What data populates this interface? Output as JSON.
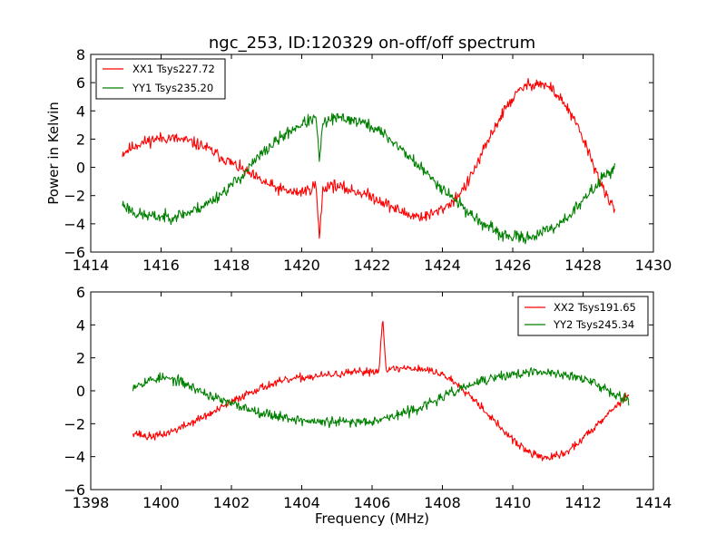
{
  "chart_data": [
    {
      "type": "line",
      "title": "ngc_253, ID:120329 on-off/off spectrum",
      "xlabel": "",
      "ylabel": "Power in Kelvin",
      "xlim": [
        1414,
        1430
      ],
      "ylim": [
        -6,
        8
      ],
      "xticks": [
        1414,
        1416,
        1418,
        1420,
        1422,
        1424,
        1426,
        1428,
        1430
      ],
      "yticks": [
        -6,
        -4,
        -2,
        0,
        2,
        4,
        6,
        8
      ],
      "legend_position": "top-left",
      "grid": false,
      "series": [
        {
          "name": "XX1 Tsys227.72",
          "color": "#ff0000",
          "noise": 0.35,
          "seed": 11,
          "x": [
            1414.9,
            1415.3,
            1415.8,
            1416.2,
            1416.7,
            1417.2,
            1417.6,
            1418.0,
            1418.4,
            1418.8,
            1419.3,
            1419.8,
            1420.2,
            1420.4,
            1420.5,
            1420.6,
            1420.8,
            1421.2,
            1421.7,
            1422.2,
            1422.7,
            1423.1,
            1423.5,
            1423.9,
            1424.3,
            1424.7,
            1425.1,
            1425.5,
            1425.9,
            1426.3,
            1426.7,
            1427.1,
            1427.5,
            1427.9,
            1428.3,
            1428.6,
            1428.9
          ],
          "y": [
            1.0,
            1.6,
            2.0,
            2.1,
            1.9,
            1.5,
            0.9,
            0.3,
            -0.3,
            -0.9,
            -1.5,
            -1.8,
            -1.6,
            -1.2,
            -5.0,
            -1.6,
            -1.2,
            -1.5,
            -1.8,
            -2.3,
            -3.0,
            -3.4,
            -3.5,
            -3.1,
            -2.4,
            -1.2,
            0.8,
            2.9,
            4.6,
            5.7,
            6.0,
            5.6,
            4.4,
            2.6,
            0.2,
            -1.8,
            -3.0
          ]
        },
        {
          "name": "YY1 Tsys235.20",
          "color": "#008000",
          "noise": 0.35,
          "seed": 23,
          "x": [
            1414.9,
            1415.3,
            1415.8,
            1416.3,
            1416.8,
            1417.3,
            1417.8,
            1418.3,
            1418.8,
            1419.3,
            1419.8,
            1420.2,
            1420.4,
            1420.5,
            1420.6,
            1420.8,
            1421.2,
            1421.7,
            1422.2,
            1422.7,
            1423.2,
            1423.7,
            1424.2,
            1424.7,
            1425.2,
            1425.7,
            1426.2,
            1426.7,
            1427.2,
            1427.7,
            1428.2,
            1428.6,
            1428.9
          ],
          "y": [
            -2.6,
            -3.3,
            -3.5,
            -3.5,
            -3.2,
            -2.6,
            -1.7,
            -0.6,
            0.8,
            1.9,
            2.8,
            3.3,
            3.5,
            0.6,
            3.0,
            3.4,
            3.5,
            3.2,
            2.6,
            1.6,
            0.4,
            -0.8,
            -1.9,
            -3.1,
            -4.1,
            -4.8,
            -5.0,
            -4.8,
            -4.2,
            -3.2,
            -1.8,
            -0.6,
            0.0
          ]
        }
      ]
    },
    {
      "type": "line",
      "title": "",
      "xlabel": "Frequency (MHz)",
      "ylabel": "",
      "xlim": [
        1398,
        1414
      ],
      "ylim": [
        -6,
        6
      ],
      "xticks": [
        1398,
        1400,
        1402,
        1404,
        1406,
        1408,
        1410,
        1412,
        1414
      ],
      "yticks": [
        -6,
        -4,
        -2,
        0,
        2,
        4,
        6
      ],
      "legend_position": "top-right",
      "grid": false,
      "series": [
        {
          "name": "XX2 Tsys191.65",
          "color": "#ff0000",
          "noise": 0.2,
          "seed": 37,
          "x": [
            1399.2,
            1399.6,
            1400.0,
            1400.5,
            1401.0,
            1401.5,
            1402.0,
            1402.5,
            1403.0,
            1403.5,
            1404.0,
            1404.5,
            1405.0,
            1405.5,
            1406.0,
            1406.2,
            1406.3,
            1406.4,
            1406.6,
            1407.0,
            1407.5,
            1408.0,
            1408.5,
            1409.0,
            1409.5,
            1410.0,
            1410.5,
            1411.0,
            1411.5,
            1412.0,
            1412.5,
            1413.0,
            1413.3
          ],
          "y": [
            -2.5,
            -2.8,
            -2.7,
            -2.3,
            -1.8,
            -1.3,
            -0.7,
            -0.1,
            0.3,
            0.6,
            0.8,
            0.9,
            1.0,
            1.1,
            1.2,
            1.2,
            4.6,
            1.3,
            1.3,
            1.4,
            1.3,
            1.0,
            0.3,
            -0.7,
            -1.9,
            -3.0,
            -3.8,
            -4.1,
            -3.8,
            -2.9,
            -1.8,
            -0.8,
            -0.2
          ]
        },
        {
          "name": "YY2 Tsys245.34",
          "color": "#008000",
          "noise": 0.25,
          "seed": 53,
          "x": [
            1399.2,
            1399.6,
            1400.0,
            1400.5,
            1401.0,
            1401.5,
            1402.0,
            1402.5,
            1403.0,
            1403.5,
            1404.0,
            1404.5,
            1405.0,
            1405.5,
            1406.0,
            1406.5,
            1407.0,
            1407.5,
            1408.0,
            1408.5,
            1409.0,
            1409.5,
            1410.0,
            1410.5,
            1411.0,
            1411.5,
            1412.0,
            1412.5,
            1413.0,
            1413.3
          ],
          "y": [
            0.3,
            0.6,
            0.8,
            0.6,
            0.1,
            -0.4,
            -0.8,
            -1.1,
            -1.4,
            -1.6,
            -1.8,
            -1.9,
            -1.9,
            -1.9,
            -1.8,
            -1.6,
            -1.3,
            -0.9,
            -0.4,
            0.1,
            0.5,
            0.8,
            1.0,
            1.1,
            1.1,
            1.0,
            0.7,
            0.3,
            -0.3,
            -0.5
          ]
        }
      ]
    }
  ]
}
